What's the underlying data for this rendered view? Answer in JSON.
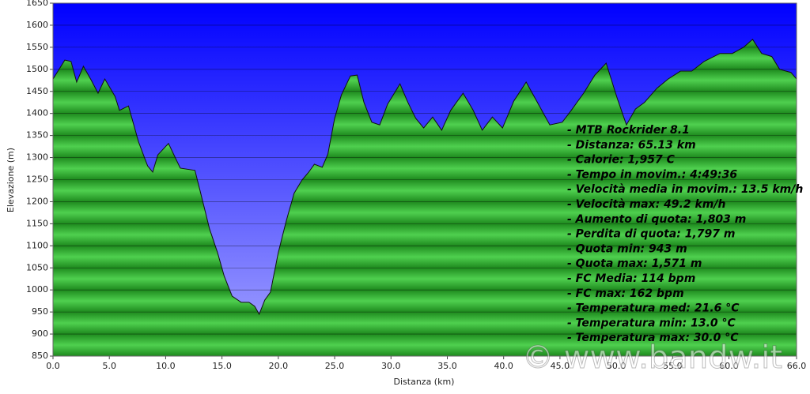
{
  "chart_data": {
    "type": "area",
    "xlabel": "Distanza  (km)",
    "ylabel": "Elevazione (m)",
    "x": [
      0,
      1.05,
      1.6,
      2.1,
      2.7,
      3.4,
      4.0,
      4.6,
      5.5,
      5.9,
      6.7,
      7.6,
      8.4,
      8.85,
      9.3,
      10.25,
      10.7,
      11.3,
      12.6,
      13.2,
      13.9,
      14.6,
      15.2,
      15.9,
      16.7,
      17.4,
      17.9,
      18.3,
      18.8,
      19.3,
      20.0,
      20.7,
      21.4,
      22.1,
      22.7,
      23.2,
      23.9,
      24.4,
      25.0,
      25.6,
      26.4,
      27.0,
      27.6,
      28.3,
      29.0,
      29.7,
      30.8,
      31.5,
      32.2,
      32.9,
      33.7,
      34.5,
      35.3,
      36.4,
      37.3,
      38.1,
      39.0,
      39.9,
      40.9,
      42.0,
      43.0,
      44.1,
      45.2,
      46.0,
      47.1,
      48.1,
      49.1,
      50.1,
      50.9,
      51.7,
      52.5,
      53.6,
      54.6,
      55.7,
      56.7,
      57.8,
      59.2,
      60.3,
      61.3,
      62.1,
      62.9,
      63.8,
      64.5,
      65.5,
      66.0
    ],
    "values": [
      1478,
      1521,
      1518,
      1471,
      1507,
      1475,
      1446,
      1478,
      1439,
      1407,
      1417,
      1335,
      1281,
      1267,
      1306,
      1332,
      1308,
      1276,
      1271,
      1210,
      1138,
      1085,
      1031,
      986,
      972,
      972,
      963,
      945,
      977,
      995,
      1085,
      1156,
      1219,
      1249,
      1267,
      1285,
      1278,
      1308,
      1389,
      1442,
      1485,
      1487,
      1425,
      1380,
      1374,
      1421,
      1467,
      1425,
      1389,
      1367,
      1392,
      1362,
      1407,
      1446,
      1407,
      1362,
      1392,
      1367,
      1428,
      1471,
      1425,
      1374,
      1380,
      1407,
      1446,
      1487,
      1514,
      1433,
      1374,
      1410,
      1425,
      1457,
      1478,
      1496,
      1496,
      1518,
      1536,
      1536,
      1550,
      1568,
      1536,
      1529,
      1500,
      1493,
      1478
    ],
    "xlim": [
      0,
      66
    ],
    "ylim": [
      850,
      1650
    ],
    "xticks": [
      {
        "value": 0,
        "label": "0.0"
      },
      {
        "value": 5,
        "label": "5.0"
      },
      {
        "value": 10,
        "label": "10.0"
      },
      {
        "value": 15,
        "label": "15.0"
      },
      {
        "value": 20,
        "label": "20.0"
      },
      {
        "value": 25,
        "label": "25.0"
      },
      {
        "value": 30,
        "label": "30.0"
      },
      {
        "value": 35,
        "label": "35.0"
      },
      {
        "value": 40,
        "label": "40.0"
      },
      {
        "value": 45,
        "label": "45.0"
      },
      {
        "value": 50,
        "label": "50.0"
      },
      {
        "value": 55,
        "label": "55.0"
      },
      {
        "value": 60,
        "label": "60.0"
      },
      {
        "value": 66,
        "label": "66.0"
      }
    ],
    "yticks": [
      850,
      900,
      950,
      1000,
      1050,
      1100,
      1150,
      1200,
      1250,
      1300,
      1350,
      1400,
      1450,
      1500,
      1550,
      1600,
      1650
    ],
    "grid": true,
    "annotations": [
      "- MTB Rockrider 8.1",
      "- Distanza: 65.13 km",
      "- Calorie: 1,957 C",
      "- Tempo in movim.: 4:49:36",
      "- Velocità media in movim.: 13.5 km/h",
      "- Velocità max: 49.2 km/h",
      "- Aumento di quota: 1,803 m",
      "- Perdita di quota: 1,797 m",
      "- Quota min: 943 m",
      "- Quota max: 1,571 m",
      "- FC Media: 114 bpm",
      "- FC max: 162 bpm",
      "- Temperatura med: 21.6 °C",
      "- Temperatura min: 13.0 °C",
      "- Temperatura max: 30.0 °C"
    ],
    "watermark": "© www.bandw.it"
  }
}
